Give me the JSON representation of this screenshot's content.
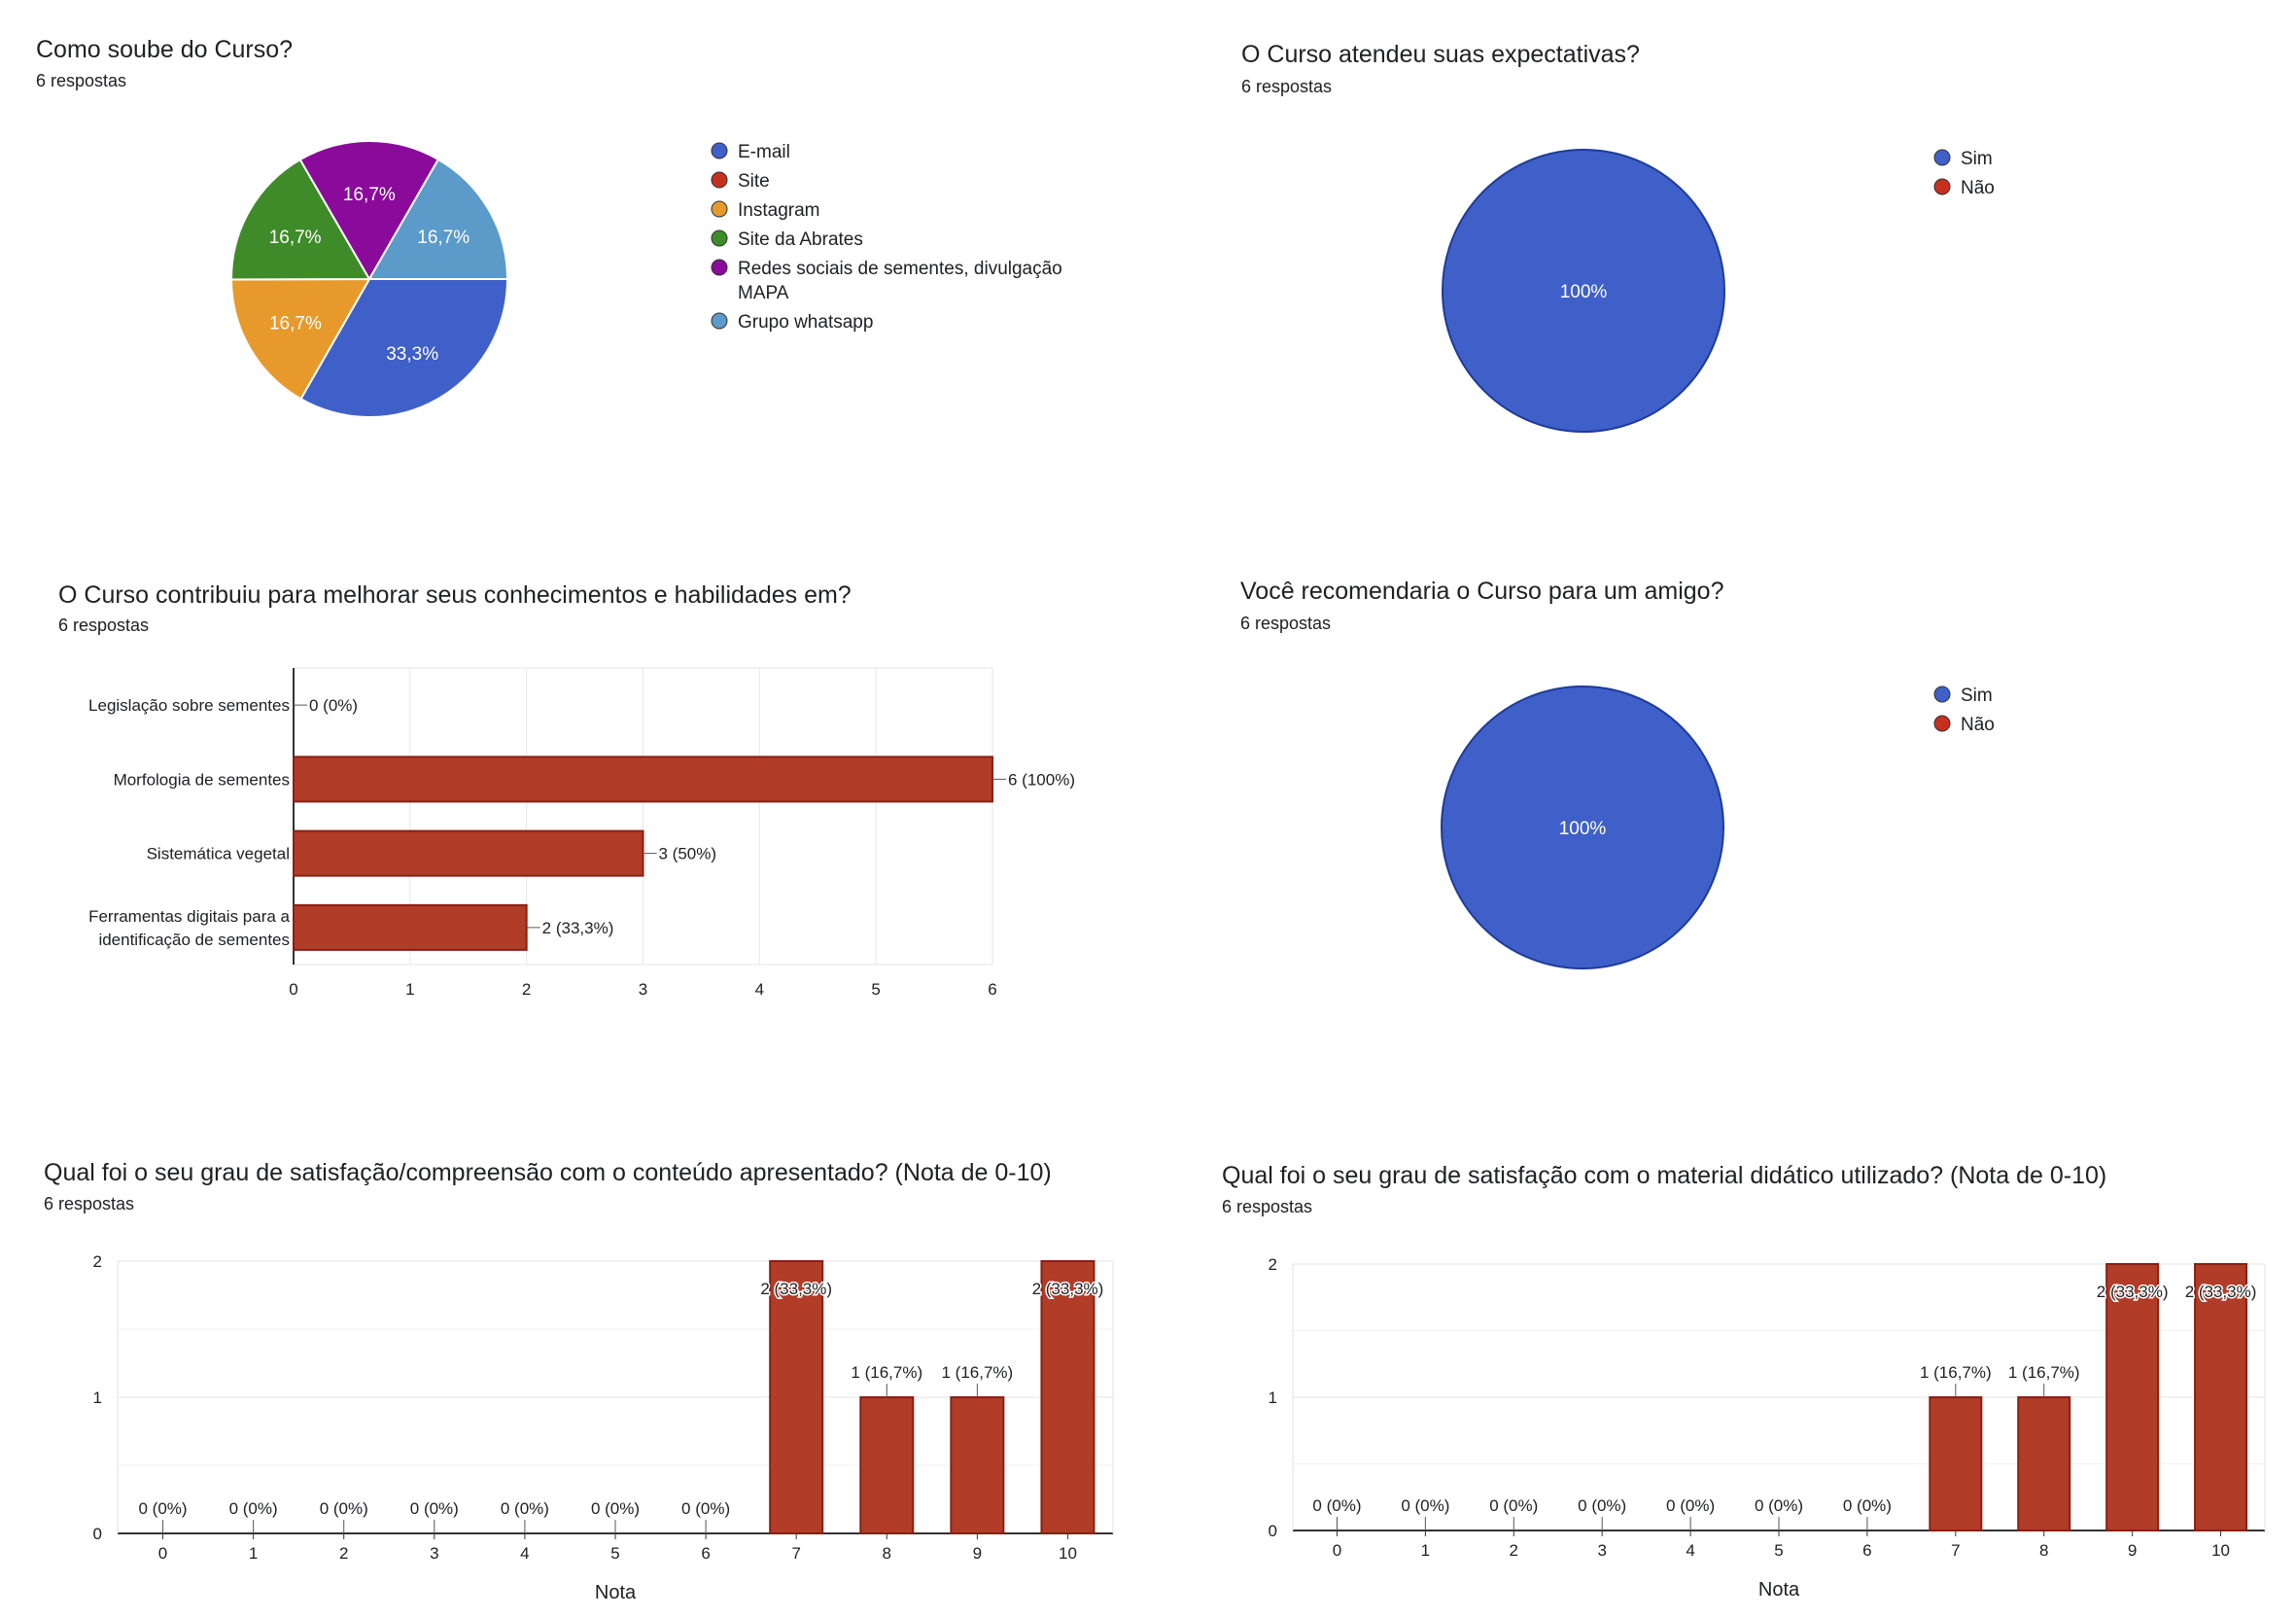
{
  "chart_data": [
    {
      "type": "pie",
      "title": "Como soube do Curso?",
      "subtitle": "6 respostas",
      "slices": [
        {
          "label": "E-mail",
          "value": 33.3,
          "display": "33,3%",
          "color": "#3f60c8"
        },
        {
          "label": "Site",
          "value": 0,
          "display": "",
          "color": "#c7301f"
        },
        {
          "label": "Instagram",
          "value": 16.7,
          "display": "16,7%",
          "color": "#e79a2b"
        },
        {
          "label": "Site da Abrates",
          "value": 16.7,
          "display": "16,7%",
          "color": "#3f8b2a"
        },
        {
          "label": "Redes sociais de sementes, divulgação MAPA",
          "value": 16.7,
          "display": "16,7%",
          "color": "#8a0b9a"
        },
        {
          "label": "Grupo whatsapp",
          "value": 16.7,
          "display": "16,7%",
          "color": "#5b9ac9"
        }
      ],
      "legend_lines": [
        [
          "E-mail"
        ],
        [
          "Site"
        ],
        [
          "Instagram"
        ],
        [
          "Site da Abrates"
        ],
        [
          "Redes sociais de sementes, divulgação",
          "MAPA"
        ],
        [
          "Grupo whatsapp"
        ]
      ],
      "legend": "right"
    },
    {
      "type": "pie",
      "title": "O Curso atendeu suas expectativas?",
      "subtitle": "6 respostas",
      "slices": [
        {
          "label": "Sim",
          "value": 100,
          "display": "100%",
          "color": "#3f60c8"
        },
        {
          "label": "Não",
          "value": 0,
          "display": "",
          "color": "#c7301f"
        }
      ],
      "legend": "right"
    },
    {
      "type": "bar",
      "orientation": "horizontal",
      "title": "O Curso contribuiu para melhorar seus conhecimentos e habilidades em?",
      "subtitle": "6 respostas",
      "categories": [
        "Legislação sobre sementes",
        "Morfologia de sementes",
        "Sistemática vegetal",
        "Ferramentas digitais para a identificação de sementes"
      ],
      "category_lines": [
        [
          "Legislação sobre sementes"
        ],
        [
          "Morfologia de sementes"
        ],
        [
          "Sistemática vegetal"
        ],
        [
          "Ferramentas digitais para a",
          "identificação de sementes"
        ]
      ],
      "values": [
        0,
        6,
        3,
        2
      ],
      "data_labels": [
        "0 (0%)",
        "6 (100%)",
        "3 (50%)",
        "2 (33,3%)"
      ],
      "xlim": [
        0,
        6
      ],
      "xticks": [
        "0",
        "1",
        "2",
        "3",
        "4",
        "5",
        "6"
      ],
      "color": "#b13c28",
      "grid": true
    },
    {
      "type": "pie",
      "title": "Você recomendaria o Curso para um amigo?",
      "subtitle": "6 respostas",
      "slices": [
        {
          "label": "Sim",
          "value": 100,
          "display": "100%",
          "color": "#3f60c8"
        },
        {
          "label": "Não",
          "value": 0,
          "display": "",
          "color": "#c7301f"
        }
      ],
      "legend": "right"
    },
    {
      "type": "bar",
      "title": "Qual foi o seu grau de satisfação/compreensão com o conteúdo apresentado? (Nota de 0-10)",
      "subtitle": "6 respostas",
      "categories": [
        "0",
        "1",
        "2",
        "3",
        "4",
        "5",
        "6",
        "7",
        "8",
        "9",
        "10"
      ],
      "values": [
        0,
        0,
        0,
        0,
        0,
        0,
        0,
        2,
        1,
        1,
        2
      ],
      "data_labels": [
        "0 (0%)",
        "0 (0%)",
        "0 (0%)",
        "0 (0%)",
        "0 (0%)",
        "0 (0%)",
        "0 (0%)",
        "2 (33,3%)",
        "1 (16,7%)",
        "1 (16,7%)",
        "2 (33,3%)"
      ],
      "xlabel": "Nota",
      "ylim": [
        0,
        2
      ],
      "yticks": [
        "0",
        "1",
        "2"
      ],
      "color": "#b13c28",
      "grid": true
    },
    {
      "type": "bar",
      "title": "Qual foi o seu grau de satisfação com o material didático utilizado? (Nota de 0-10)",
      "subtitle": "6 respostas",
      "categories": [
        "0",
        "1",
        "2",
        "3",
        "4",
        "5",
        "6",
        "7",
        "8",
        "9",
        "10"
      ],
      "values": [
        0,
        0,
        0,
        0,
        0,
        0,
        0,
        1,
        1,
        2,
        2
      ],
      "data_labels": [
        "0 (0%)",
        "0 (0%)",
        "0 (0%)",
        "0 (0%)",
        "0 (0%)",
        "0 (0%)",
        "0 (0%)",
        "1 (16,7%)",
        "1 (16,7%)",
        "2 (33,3%)",
        "2 (33,3%)"
      ],
      "xlabel": "Nota",
      "ylim": [
        0,
        2
      ],
      "yticks": [
        "0",
        "1",
        "2"
      ],
      "color": "#b13c28",
      "grid": true
    }
  ]
}
